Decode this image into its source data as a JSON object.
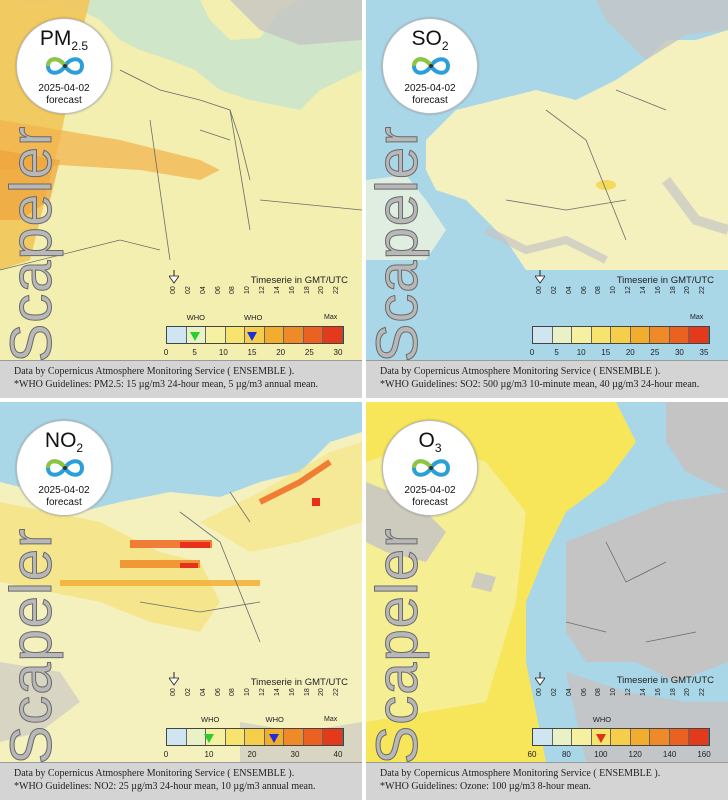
{
  "panels": [
    {
      "pollutant": "PM",
      "pollutant_sub": "2.5",
      "date": "2025-04-02",
      "forecast_label": "forecast",
      "watermark": "Scapeler",
      "timeseries_label": "Timeserie in GMT/UTC",
      "hours": [
        "00",
        "02",
        "04",
        "06",
        "08",
        "10",
        "12",
        "14",
        "16",
        "18",
        "20",
        "22"
      ],
      "scale_ticks": [
        "0",
        "5",
        "10",
        "15",
        "20",
        "25",
        "30"
      ],
      "max_label": "Max",
      "who_label": "WHO",
      "who_markers": [
        {
          "value": 5,
          "color": "#2ecc2e"
        },
        {
          "value": 15,
          "color": "#1f2fd6"
        }
      ],
      "source_line": "Data by Copernicus Atmosphere Monitoring Service ( ENSEMBLE ).",
      "who_line": "*WHO Guidelines: PM2.5: 15 µg/m3 24-hour mean, 5 µg/m3 annual mean."
    },
    {
      "pollutant": "SO",
      "pollutant_sub": "2",
      "date": "2025-04-02",
      "forecast_label": "forecast",
      "watermark": "Scapeler",
      "timeseries_label": "Timeserie in GMT/UTC",
      "hours": [
        "00",
        "02",
        "04",
        "06",
        "08",
        "10",
        "12",
        "14",
        "16",
        "18",
        "20",
        "22"
      ],
      "scale_ticks": [
        "0",
        "5",
        "10",
        "15",
        "20",
        "25",
        "30",
        "35"
      ],
      "max_label": "Max",
      "who_label": "",
      "who_markers": [],
      "source_line": "Data by Copernicus Atmosphere Monitoring Service ( ENSEMBLE ).",
      "who_line": "*WHO Guidelines: SO2: 500 µg/m3 10-minute mean, 40 µg/m3 24-hour mean."
    },
    {
      "pollutant": "NO",
      "pollutant_sub": "2",
      "date": "2025-04-02",
      "forecast_label": "forecast",
      "watermark": "Scapeler",
      "timeseries_label": "Timeserie in GMT/UTC",
      "hours": [
        "00",
        "02",
        "04",
        "06",
        "08",
        "10",
        "12",
        "14",
        "16",
        "18",
        "20",
        "22"
      ],
      "scale_ticks": [
        "0",
        "10",
        "20",
        "30",
        "40"
      ],
      "max_label": "Max",
      "who_label": "WHO",
      "who_markers": [
        {
          "value": 10,
          "color": "#2ecc2e"
        },
        {
          "value": 25,
          "color": "#1f2fd6"
        }
      ],
      "source_line": "Data by Copernicus Atmosphere Monitoring Service ( ENSEMBLE ).",
      "who_line": "*WHO Guidelines: NO2: 25 µg/m3 24-hour mean, 10 µg/m3 annual mean."
    },
    {
      "pollutant": "O",
      "pollutant_sub": "3",
      "date": "2025-04-02",
      "forecast_label": "forecast",
      "watermark": "Scapeler",
      "timeseries_label": "Timeserie in GMT/UTC",
      "hours": [
        "00",
        "02",
        "04",
        "06",
        "08",
        "10",
        "12",
        "14",
        "16",
        "18",
        "20",
        "22"
      ],
      "scale_ticks": [
        "60",
        "80",
        "100",
        "120",
        "140",
        "160"
      ],
      "max_label": "",
      "who_label": "WHO",
      "who_markers": [
        {
          "value": 100,
          "color": "#e03020"
        }
      ],
      "source_line": "Data by Copernicus Atmosphere Monitoring Service ( ENSEMBLE ).",
      "who_line": "*WHO Guidelines: Ozone: 100 µg/m3 8-hour mean."
    }
  ],
  "colors": {
    "sea": "#a9d7e8",
    "land_low": "#f3efb0",
    "land_mid": "#f5df6e",
    "land_high": "#f2a12e",
    "hotspot": "#e8301c",
    "no_data": "#c4c4c4",
    "scale": [
      "#cfe6f0",
      "#e9f2c7",
      "#f6f1a0",
      "#f6e46e",
      "#f5cf4c",
      "#f2ad2e",
      "#ee8a27",
      "#ea6121",
      "#e23a1a"
    ]
  }
}
